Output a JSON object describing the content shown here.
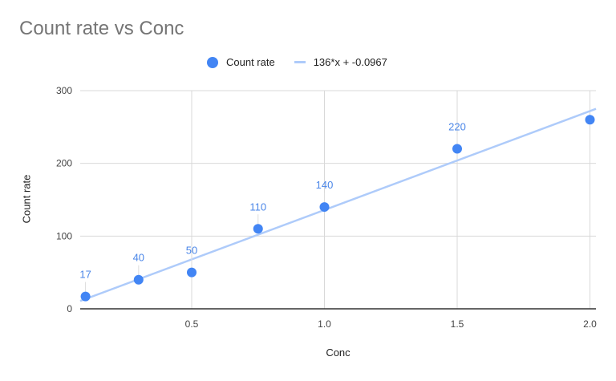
{
  "chart_data": {
    "type": "scatter",
    "title": "Count rate vs Conc",
    "xlabel": "Conc",
    "ylabel": "Count rate",
    "xlim": [
      0.08,
      2.02
    ],
    "ylim": [
      0,
      300
    ],
    "x_ticks": [
      "0.5",
      "1.0",
      "1.5",
      "2.0"
    ],
    "y_ticks": [
      "0",
      "100",
      "200",
      "300"
    ],
    "grid": true,
    "legend_position": "top",
    "legend": [
      "Count rate",
      "136*x + -0.0967"
    ],
    "series": [
      {
        "name": "Count rate",
        "type": "scatter",
        "color": "#4285f4",
        "x": [
          0.1,
          0.3,
          0.5,
          0.75,
          1.0,
          1.5,
          2.0
        ],
        "y": [
          17,
          40,
          50,
          110,
          140,
          220,
          260
        ],
        "data_labels": [
          "17",
          "40",
          "50",
          "110",
          "140",
          "220",
          ""
        ]
      },
      {
        "name": "136*x + -0.0967",
        "type": "trendline",
        "color": "#aecbfa",
        "slope": 136,
        "intercept": -0.0967
      }
    ]
  },
  "legend": {
    "series_label": "Count rate",
    "trendline_label": "136*x + -0.0967"
  }
}
